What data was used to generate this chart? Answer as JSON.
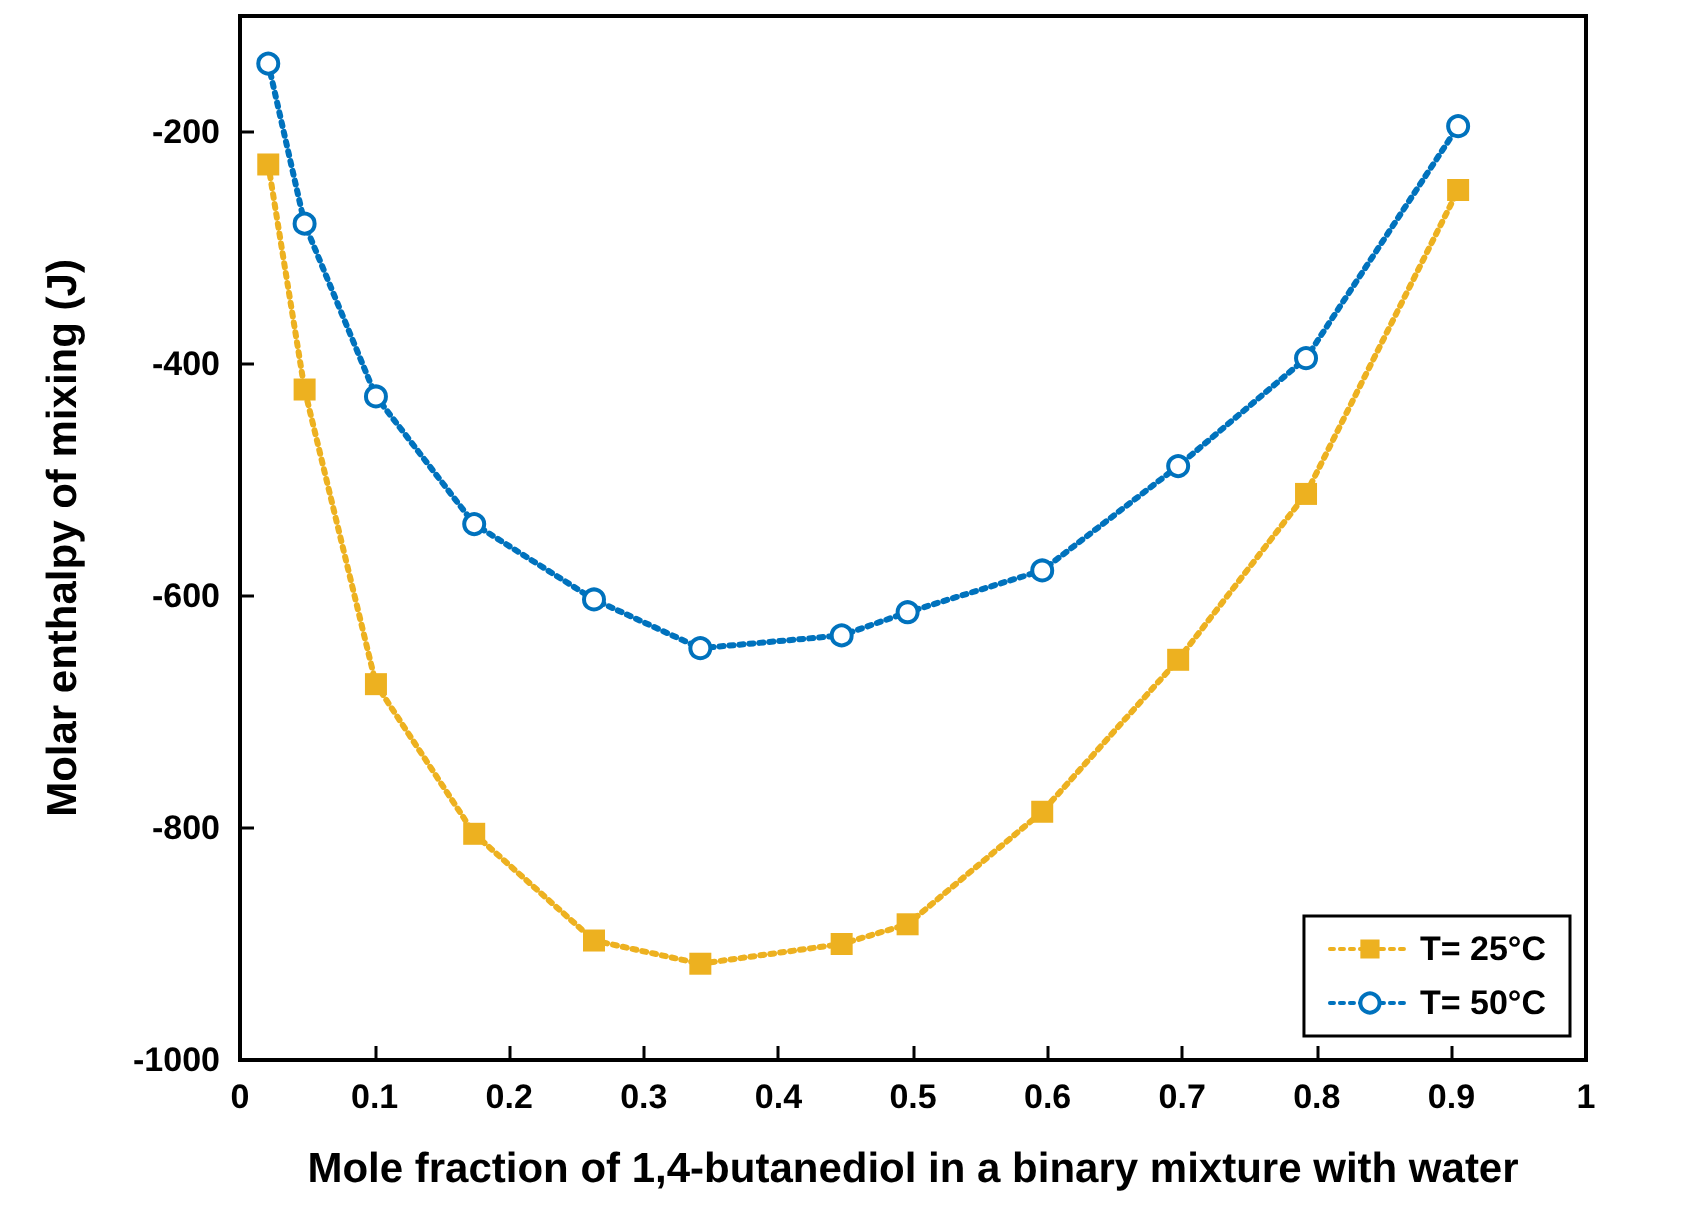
{
  "chart_data": {
    "type": "line",
    "xlabel": "Mole fraction of 1,4-butanediol in a binary mixture with water",
    "ylabel": "Molar enthalpy of mixing (J)",
    "x": [
      0.021,
      0.048,
      0.101,
      0.174,
      0.263,
      0.342,
      0.447,
      0.496,
      0.596,
      0.697,
      0.792,
      0.905
    ],
    "series": [
      {
        "name": "T= 25°C",
        "color": "#edb120",
        "marker": "square",
        "values": [
          -228,
          -422,
          -676,
          -805,
          -897,
          -917,
          -900,
          -883,
          -786,
          -655,
          -512,
          -250
        ]
      },
      {
        "name": "T= 50°C",
        "color": "#0072bd",
        "marker": "circle",
        "values": [
          -141,
          -279,
          -428,
          -538,
          -603,
          -645,
          -634,
          -614,
          -578,
          -488,
          -395,
          -195
        ]
      }
    ],
    "xlim": [
      0,
      1
    ],
    "xticks": [
      0,
      0.1,
      0.2,
      0.3,
      0.4,
      0.5,
      0.6,
      0.7,
      0.8,
      0.9,
      1
    ],
    "ylim": [
      -1000,
      -100
    ],
    "yticks": [
      -1000,
      -800,
      -600,
      -400,
      -200
    ],
    "grid": false,
    "legend": "bottom right",
    "line_style": "dotted"
  }
}
